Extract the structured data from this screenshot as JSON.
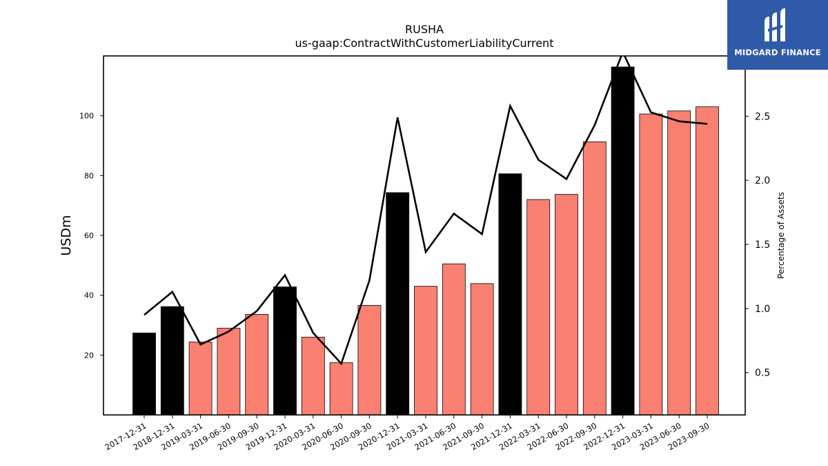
{
  "brand": {
    "name": "MIDGARD FINANCE",
    "background": "#2f5aa8"
  },
  "chart_data": {
    "type": "bar",
    "title": "RUSHA",
    "subtitle": "us-gaap:ContractWithCustomerLiabilityCurrent",
    "ylabel": "USDm",
    "y2label": "Percentage of Assets",
    "ylim": [
      0,
      120
    ],
    "y2lim": [
      0.17,
      2.97
    ],
    "yticks": [
      20,
      40,
      60,
      80,
      100
    ],
    "y2ticks": [
      0.5,
      1.0,
      1.5,
      2.0,
      2.5
    ],
    "grid": false,
    "colors": {
      "annual": "#000000",
      "quarterly": "#fa8072",
      "line": "#000000"
    },
    "categories": [
      "2017-12-31",
      "2018-12-31",
      "2019-03-31",
      "2019-06-30",
      "2019-09-30",
      "2019-12-31",
      "2020-03-31",
      "2020-06-30",
      "2020-09-30",
      "2020-12-31",
      "2021-03-31",
      "2021-06-30",
      "2021-09-30",
      "2021-12-31",
      "2022-03-31",
      "2022-06-30",
      "2022-09-30",
      "2022-12-31",
      "2023-03-31",
      "2023-06-30",
      "2023-09-30"
    ],
    "series": [
      {
        "type": "bar",
        "axis": "left",
        "values": [
          27.4,
          36.2,
          24.4,
          29.0,
          33.6,
          42.8,
          26.0,
          17.5,
          36.6,
          74.3,
          43.0,
          50.5,
          43.9,
          80.6,
          72.0,
          73.7,
          91.3,
          116.3,
          100.6,
          101.6,
          103.0
        ],
        "highlight": [
          true,
          true,
          false,
          false,
          false,
          true,
          false,
          false,
          false,
          true,
          false,
          false,
          false,
          true,
          false,
          false,
          false,
          true,
          false,
          false,
          false
        ]
      },
      {
        "type": "line",
        "axis": "right",
        "values": [
          0.95,
          1.13,
          0.72,
          0.82,
          0.98,
          1.26,
          0.81,
          0.57,
          1.22,
          2.49,
          1.44,
          1.74,
          1.58,
          2.58,
          2.16,
          2.01,
          2.43,
          3.0,
          2.53,
          2.46,
          2.44
        ]
      }
    ]
  }
}
